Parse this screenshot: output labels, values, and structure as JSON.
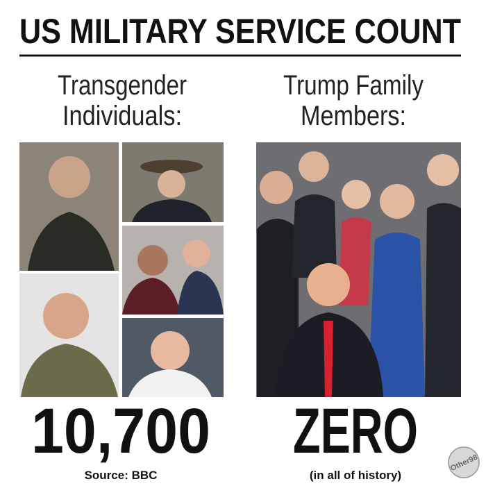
{
  "header": {
    "title": "US MILITARY SERVICE COUNT"
  },
  "left": {
    "heading": [
      "Transgender",
      "Individuals:"
    ],
    "count": "10,700",
    "note": "Source: BBC"
  },
  "right": {
    "heading": [
      "Trump Family",
      "Members:"
    ],
    "count": "ZERO",
    "note": "(in all of history)"
  },
  "watermark": "Other98"
}
